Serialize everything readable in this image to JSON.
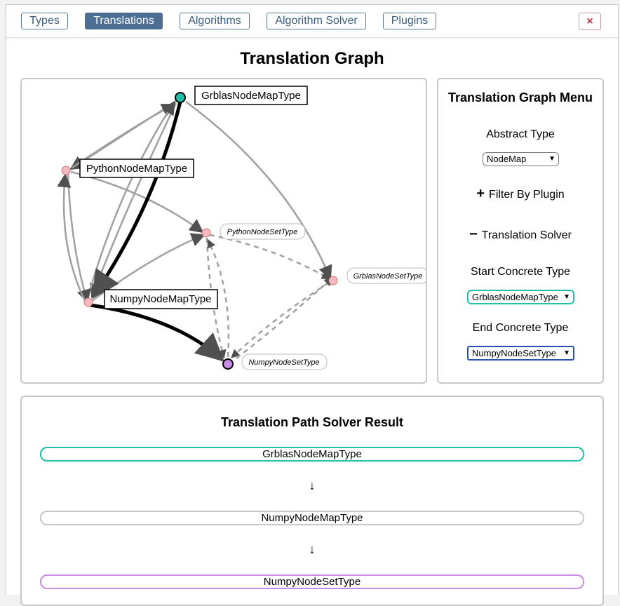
{
  "tabs": [
    {
      "label": "Types"
    },
    {
      "label": "Translations"
    },
    {
      "label": "Algorithms"
    },
    {
      "label": "Algorithm Solver"
    },
    {
      "label": "Plugins"
    }
  ],
  "close_label": "×",
  "page_title": "Translation Graph",
  "graph": {
    "nodes": {
      "grblas_map": "GrblasNodeMapType",
      "python_map": "PythonNodeMapType",
      "python_set": "PythonNodeSetType",
      "grblas_set": "GrblasNodeSetType",
      "numpy_map": "NumpyNodeMapType",
      "numpy_set": "NumpyNodeSetType"
    },
    "colors": {
      "start": "#1fbfa8",
      "end": "#c78be8",
      "default": "#f7b9c0",
      "edge": "#a0a0a0",
      "path": "#000000"
    }
  },
  "menu": {
    "title": "Translation Graph Menu",
    "abstract_type_label": "Abstract Type",
    "abstract_type_value": "NodeMap",
    "filter_toggle": "Filter By Plugin",
    "solver_toggle": "Translation Solver",
    "start_label": "Start Concrete Type",
    "start_value": "GrblasNodeMapType",
    "end_label": "End Concrete Type",
    "end_value": "NumpyNodeSetType"
  },
  "result": {
    "title": "Translation Path Solver Result",
    "path": [
      "GrblasNodeMapType",
      "NumpyNodeMapType",
      "NumpyNodeSetType"
    ],
    "arrow": "↓"
  }
}
